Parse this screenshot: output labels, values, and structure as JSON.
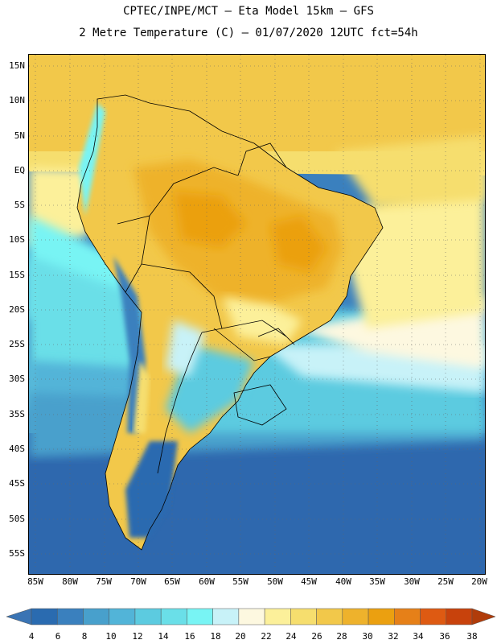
{
  "title": {
    "line1": "CPTEC/INPE/MCT –  Eta Model 15km – GFS",
    "line2": "2 Metre Temperature (C) – 01/07/2020 12UTC fct=54h"
  },
  "map": {
    "lat_labels": [
      "15N",
      "10N",
      "5N",
      "EQ",
      "5S",
      "10S",
      "15S",
      "20S",
      "25S",
      "30S",
      "35S",
      "40S",
      "45S",
      "50S",
      "55S"
    ],
    "lon_labels": [
      "85W",
      "80W",
      "75W",
      "70W",
      "65W",
      "60W",
      "55W",
      "50W",
      "45W",
      "40W",
      "35W",
      "30W",
      "25W",
      "20W"
    ]
  },
  "colorbar": {
    "labels": [
      "4",
      "6",
      "8",
      "10",
      "12",
      "14",
      "16",
      "18",
      "20",
      "22",
      "24",
      "26",
      "28",
      "30",
      "32",
      "34",
      "36",
      "38"
    ],
    "colors": [
      "#2a6bb0",
      "#3a80be",
      "#48a0cc",
      "#52b4d8",
      "#5ccbe0",
      "#6adfe8",
      "#78f4f4",
      "#c8f2f8",
      "#fdf8e0",
      "#fcf09a",
      "#f6de6e",
      "#f2c84a",
      "#eeb22c",
      "#eba010",
      "#e68018",
      "#de5a12",
      "#c8420c",
      "#a42a06"
    ],
    "under_color": "#3a74b4",
    "over_color": "#b03c0a"
  }
}
